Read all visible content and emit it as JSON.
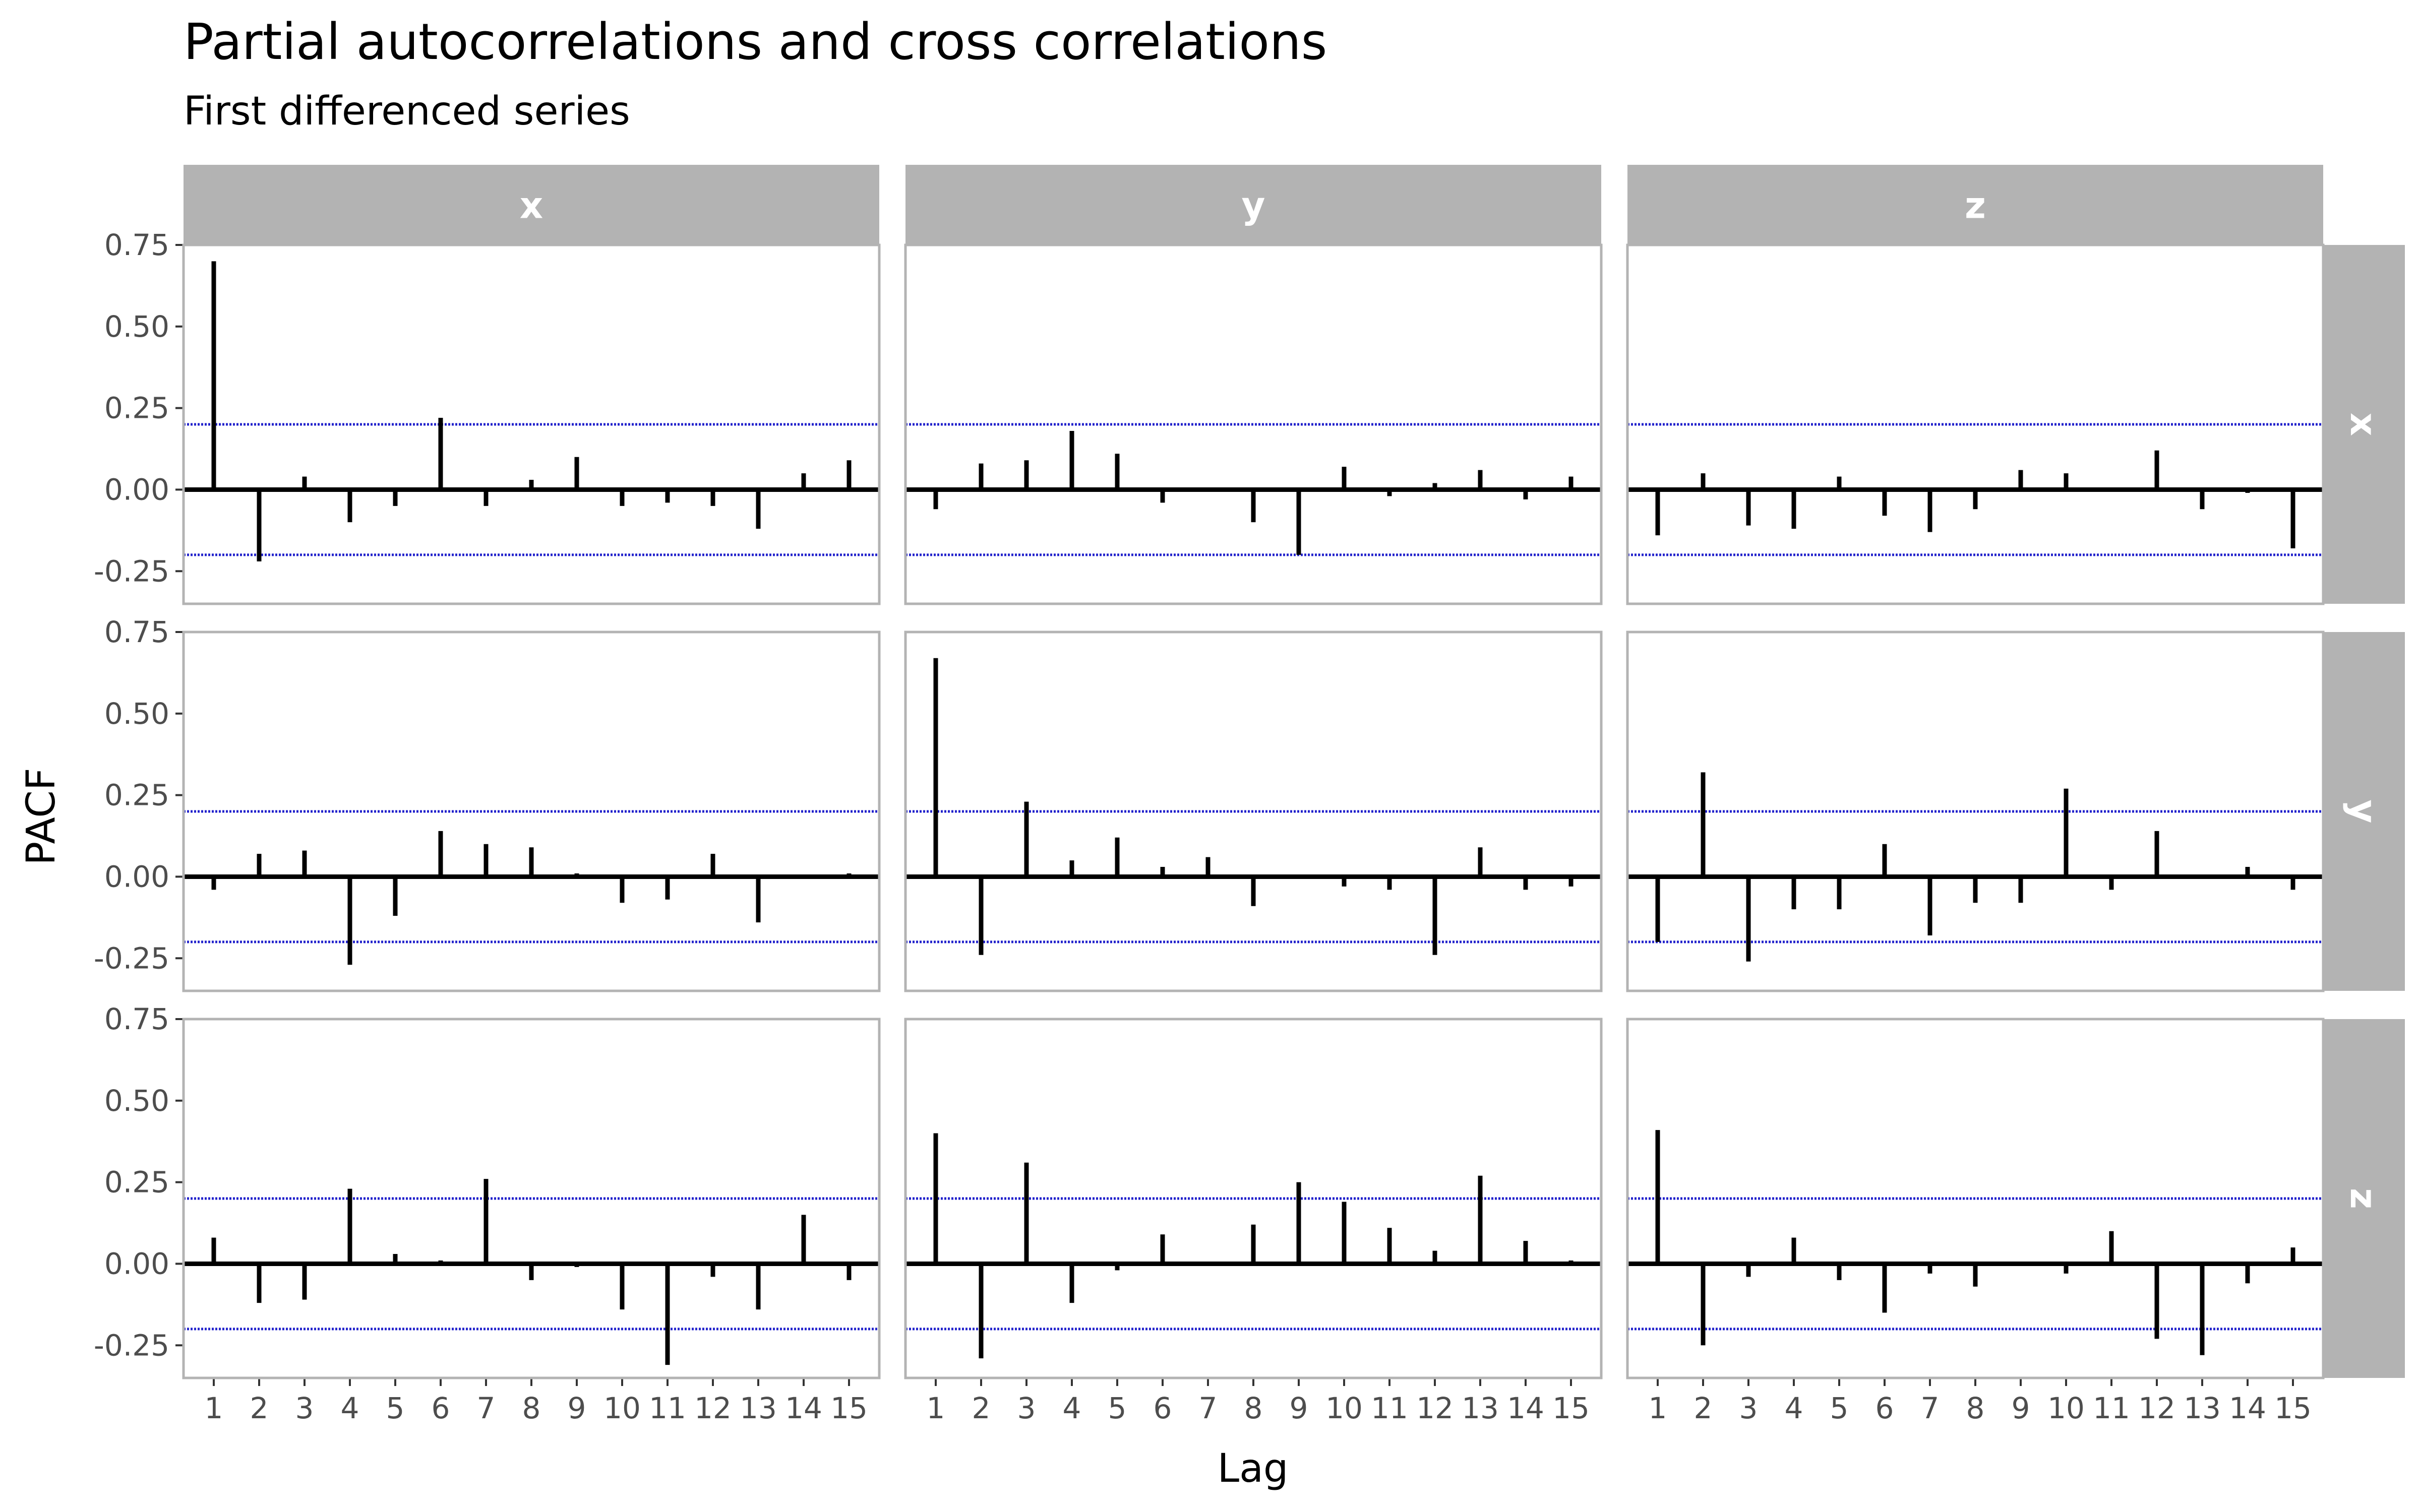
{
  "chart_data": {
    "type": "bar",
    "title": "Partial autocorrelations and cross correlations",
    "subtitle": "First differenced series",
    "xlabel": "Lag",
    "ylabel": "PACF",
    "ylim": [
      -0.35,
      0.75
    ],
    "y_ticks": [
      "0.75",
      "0.50",
      "0.25",
      "0.00",
      "-0.25"
    ],
    "y_tick_values": [
      0.75,
      0.5,
      0.25,
      0.0,
      -0.25
    ],
    "lags": [
      "1",
      "2",
      "3",
      "4",
      "5",
      "6",
      "7",
      "8",
      "9",
      "10",
      "11",
      "12",
      "13",
      "14",
      "15"
    ],
    "confidence_bound": 0.2,
    "grid": false,
    "colors": {
      "bar": "#000000",
      "bound": "#2222cc",
      "strip": "#b3b3b3",
      "strip_text": "#ffffff",
      "panel_border": "#b3b3b3",
      "zero": "#000000"
    },
    "col_labels": [
      "x",
      "y",
      "z"
    ],
    "row_labels": [
      "x",
      "y",
      "z"
    ],
    "panels": [
      {
        "row": "x",
        "col": "x",
        "values": [
          0.7,
          -0.22,
          0.04,
          -0.1,
          -0.05,
          0.22,
          -0.05,
          0.03,
          0.1,
          -0.05,
          -0.04,
          -0.05,
          -0.12,
          0.05,
          0.09
        ]
      },
      {
        "row": "x",
        "col": "y",
        "values": [
          -0.06,
          0.08,
          0.09,
          0.18,
          0.11,
          -0.04,
          0.0,
          -0.1,
          -0.2,
          0.07,
          -0.02,
          0.02,
          0.06,
          -0.03,
          0.04
        ]
      },
      {
        "row": "x",
        "col": "z",
        "values": [
          -0.14,
          0.05,
          -0.11,
          -0.12,
          0.04,
          -0.08,
          -0.13,
          -0.06,
          0.06,
          0.05,
          0.0,
          0.12,
          -0.06,
          -0.01,
          -0.18
        ]
      },
      {
        "row": "y",
        "col": "x",
        "values": [
          -0.04,
          0.07,
          0.08,
          -0.27,
          -0.12,
          0.14,
          0.1,
          0.09,
          0.01,
          -0.08,
          -0.07,
          0.07,
          -0.14,
          0.0,
          0.01
        ]
      },
      {
        "row": "y",
        "col": "y",
        "values": [
          0.67,
          -0.24,
          0.23,
          0.05,
          0.12,
          0.03,
          0.06,
          -0.09,
          0.0,
          -0.03,
          -0.04,
          -0.24,
          0.09,
          -0.04,
          -0.03
        ]
      },
      {
        "row": "y",
        "col": "z",
        "values": [
          -0.2,
          0.32,
          -0.26,
          -0.1,
          -0.1,
          0.1,
          -0.18,
          -0.08,
          -0.08,
          0.27,
          -0.04,
          0.14,
          0.0,
          0.03,
          -0.04
        ]
      },
      {
        "row": "z",
        "col": "x",
        "values": [
          0.08,
          -0.12,
          -0.11,
          0.23,
          0.03,
          0.01,
          0.26,
          -0.05,
          -0.01,
          -0.14,
          -0.31,
          -0.04,
          -0.14,
          0.15,
          -0.05
        ]
      },
      {
        "row": "z",
        "col": "y",
        "values": [
          0.4,
          -0.29,
          0.31,
          -0.12,
          -0.02,
          0.09,
          0.0,
          0.12,
          0.25,
          0.19,
          0.11,
          0.04,
          0.27,
          0.07,
          0.01
        ]
      },
      {
        "row": "z",
        "col": "z",
        "values": [
          0.41,
          -0.25,
          -0.04,
          0.08,
          -0.05,
          -0.15,
          -0.03,
          -0.07,
          0.0,
          -0.03,
          0.1,
          -0.23,
          -0.28,
          -0.06,
          0.05
        ]
      }
    ]
  }
}
